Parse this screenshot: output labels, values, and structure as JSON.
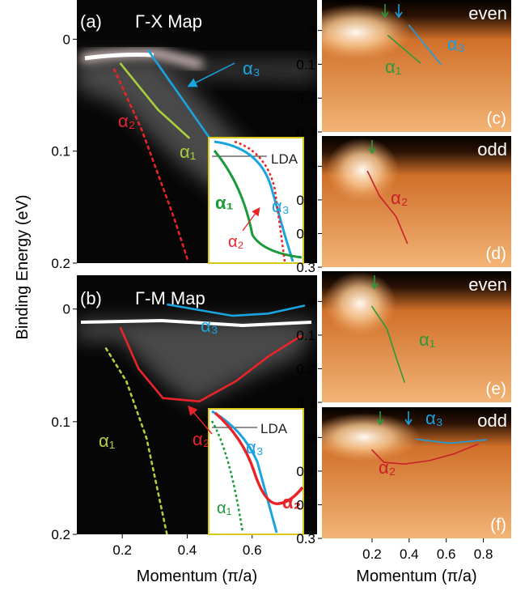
{
  "chart_data": [
    {
      "type": "line",
      "label": "(a)",
      "title": "Γ-X Map",
      "ylabel": "Binding Energy (eV)",
      "xlim": [
        0.06,
        0.8
      ],
      "ylim": [
        -0.035,
        0.2
      ],
      "y_inverted": true,
      "yticks": [
        0,
        0.1,
        0.2
      ],
      "series": [
        {
          "name": "α₃",
          "color": "#1ba3e0",
          "x": [
            0.28,
            0.49
          ],
          "values": [
            0.01,
            0.097
          ]
        },
        {
          "name": "α₁",
          "color": "#a8cf3c",
          "x": [
            0.195,
            0.31,
            0.405
          ],
          "values": [
            0.022,
            0.063,
            0.088
          ]
        },
        {
          "name": "α₂",
          "color": "#e8242a",
          "dashed": true,
          "x": [
            0.175,
            0.26,
            0.36,
            0.4
          ],
          "values": [
            0.027,
            0.081,
            0.16,
            0.196
          ]
        }
      ],
      "inset": {
        "labels": [
          "LDA",
          "α₁",
          "α₂",
          "α₃"
        ]
      }
    },
    {
      "type": "line",
      "label": "(b)",
      "title": "Γ-M Map",
      "xlabel": "Momentum (π/a)",
      "xlim": [
        0.06,
        0.8
      ],
      "ylim": [
        -0.03,
        0.2
      ],
      "y_inverted": true,
      "xticks": [
        0.2,
        0.4,
        0.6
      ],
      "yticks": [
        0,
        0.1,
        0.2
      ],
      "series": [
        {
          "name": "α₃",
          "color": "#1ba3e0",
          "x": [
            0.34,
            0.54,
            0.65,
            0.76
          ],
          "values": [
            -0.004,
            0.006,
            0.004,
            -0.003
          ]
        },
        {
          "name": "α₂",
          "color": "#e8242a",
          "x": [
            0.195,
            0.25,
            0.325,
            0.4375,
            0.55,
            0.65,
            0.75
          ],
          "values": [
            0.017,
            0.053,
            0.079,
            0.082,
            0.064,
            0.042,
            0.024
          ]
        },
        {
          "name": "α₁",
          "color": "#b5cf3a",
          "dashed": true,
          "x": [
            0.15,
            0.2125,
            0.275,
            0.3375
          ],
          "values": [
            0.035,
            0.064,
            0.115,
            0.2
          ]
        }
      ],
      "inset": {
        "labels": [
          "LDA",
          "α₃",
          "α₂",
          "α₁"
        ]
      }
    },
    {
      "type": "line",
      "label": "(c)",
      "tag": "even",
      "xlim": [
        -0.07,
        0.95
      ],
      "ylim": [
        -0.09,
        0.3
      ],
      "y_inverted": true,
      "yticks": [
        0,
        0.1,
        0.2,
        0.3
      ],
      "series": [
        {
          "name": "α₁",
          "color": "#2a9a3a",
          "x": [
            0.286,
            0.46
          ],
          "values": [
            0.015,
            0.096
          ]
        },
        {
          "name": "α₃",
          "color": "#1aa0e0",
          "x": [
            0.4,
            0.57
          ],
          "values": [
            -0.015,
            0.1
          ]
        }
      ]
    },
    {
      "type": "line",
      "label": "(d)",
      "tag": "odd",
      "xlim": [
        -0.07,
        0.95
      ],
      "ylim": [
        -0.09,
        0.3
      ],
      "y_inverted": true,
      "yticks": [
        0,
        0.1,
        0.2,
        0.3
      ],
      "series": [
        {
          "name": "α₂",
          "color": "#c8202a",
          "x": [
            0.176,
            0.24,
            0.33,
            0.39
          ],
          "values": [
            0.015,
            0.088,
            0.15,
            0.229
          ]
        }
      ]
    },
    {
      "type": "line",
      "label": "(e)",
      "tag": "even",
      "xlim": [
        -0.07,
        0.95
      ],
      "ylim": [
        -0.09,
        0.3
      ],
      "y_inverted": true,
      "yticks": [
        0,
        0.1,
        0.2,
        0.3
      ],
      "series": [
        {
          "name": "α₁",
          "color": "#2a9a3a",
          "x": [
            0.2,
            0.28,
            0.33,
            0.375
          ],
          "values": [
            0.015,
            0.081,
            0.167,
            0.24
          ]
        }
      ]
    },
    {
      "type": "line",
      "label": "(f)",
      "tag": "odd",
      "xlabel": "Momentum (π/a)",
      "xlim": [
        -0.07,
        0.95
      ],
      "ylim": [
        -0.09,
        0.3
      ],
      "y_inverted": true,
      "xticks": [
        0.2,
        0.4,
        0.6,
        0.8
      ],
      "yticks": [
        0,
        0.1,
        0.2,
        0.3
      ],
      "series": [
        {
          "name": "α₂",
          "color": "#c8202a",
          "x": [
            0.2,
            0.264,
            0.374,
            0.507,
            0.64,
            0.77
          ],
          "values": [
            0.037,
            0.074,
            0.079,
            0.069,
            0.049,
            0.02
          ]
        },
        {
          "name": "α₃",
          "color": "#1aa0e0",
          "x": [
            0.44,
            0.617,
            0.815
          ],
          "values": [
            0.005,
            0.017,
            0.007
          ]
        }
      ]
    }
  ]
}
